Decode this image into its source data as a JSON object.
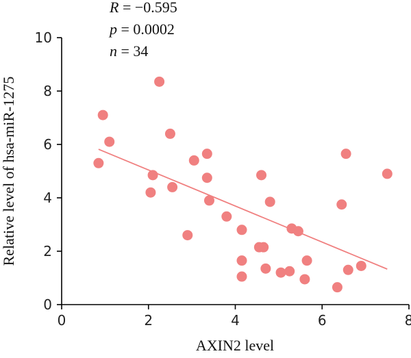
{
  "chart_data": {
    "type": "scatter",
    "title": "",
    "xlabel": "AXIN2 level",
    "ylabel": "Relative level of hsa-miR-1275",
    "xlim": [
      0,
      8
    ],
    "ylim": [
      0,
      10
    ],
    "xticks": [
      "0",
      "2",
      "4",
      "6",
      "8"
    ],
    "yticks": [
      "0",
      "2",
      "4",
      "6",
      "8",
      "10"
    ],
    "grid": false,
    "point_color": "#f08080",
    "line_color": "#f08080",
    "annotations": {
      "r_symbol": "R",
      "r_value": " = −0.595",
      "p_symbol": "p",
      "p_value": " = 0.0002",
      "n_symbol": "n",
      "n_value": " = 34"
    },
    "points": [
      {
        "x": 0.85,
        "y": 5.3
      },
      {
        "x": 0.95,
        "y": 7.1
      },
      {
        "x": 1.1,
        "y": 6.1
      },
      {
        "x": 2.05,
        "y": 4.2
      },
      {
        "x": 2.1,
        "y": 4.85
      },
      {
        "x": 2.25,
        "y": 8.35
      },
      {
        "x": 2.5,
        "y": 6.4
      },
      {
        "x": 2.55,
        "y": 4.4
      },
      {
        "x": 2.9,
        "y": 2.6
      },
      {
        "x": 3.05,
        "y": 5.4
      },
      {
        "x": 3.35,
        "y": 5.65
      },
      {
        "x": 3.35,
        "y": 4.75
      },
      {
        "x": 3.4,
        "y": 3.9
      },
      {
        "x": 3.8,
        "y": 3.3
      },
      {
        "x": 4.15,
        "y": 2.8
      },
      {
        "x": 4.15,
        "y": 1.65
      },
      {
        "x": 4.15,
        "y": 1.05
      },
      {
        "x": 4.55,
        "y": 2.15
      },
      {
        "x": 4.6,
        "y": 4.85
      },
      {
        "x": 4.65,
        "y": 2.15
      },
      {
        "x": 4.7,
        "y": 1.35
      },
      {
        "x": 4.8,
        "y": 3.85
      },
      {
        "x": 5.05,
        "y": 1.2
      },
      {
        "x": 5.25,
        "y": 1.25
      },
      {
        "x": 5.3,
        "y": 2.85
      },
      {
        "x": 5.45,
        "y": 2.75
      },
      {
        "x": 5.6,
        "y": 0.95
      },
      {
        "x": 5.65,
        "y": 1.65
      },
      {
        "x": 6.35,
        "y": 0.65
      },
      {
        "x": 6.45,
        "y": 3.75
      },
      {
        "x": 6.55,
        "y": 5.65
      },
      {
        "x": 6.6,
        "y": 1.3
      },
      {
        "x": 6.9,
        "y": 1.45
      },
      {
        "x": 7.5,
        "y": 4.9
      }
    ],
    "trendline": {
      "x1": 0.85,
      "y1": 5.82,
      "x2": 7.5,
      "y2": 1.33
    }
  }
}
